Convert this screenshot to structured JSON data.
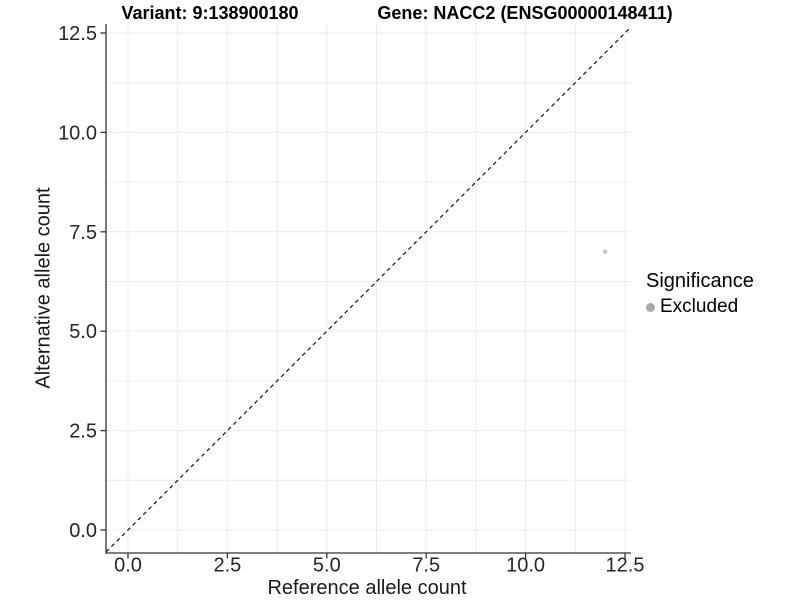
{
  "figure": {
    "title_left": "Variant: 9:138900180",
    "title_right": "Gene: NACC2 (ENSG00000148411)",
    "legend": {
      "title": "Significance",
      "items": [
        {
          "label": "Excluded",
          "color": "#a8a8a8"
        }
      ]
    }
  },
  "chart_data": {
    "type": "scatter",
    "title": "Variant: 9:138900180 | Gene: NACC2 (ENSG00000148411)",
    "xlabel": "Reference allele count",
    "ylabel": "Alternative allele count",
    "xlim": [
      -0.55,
      12.65
    ],
    "ylim": [
      -0.58,
      12.7
    ],
    "x_ticks": {
      "values": [
        0,
        2.5,
        5,
        7.5,
        10,
        12.5
      ],
      "labels": [
        "0.0",
        "2.5",
        "5.0",
        "7.5",
        "10.0",
        "12.5"
      ]
    },
    "y_ticks": {
      "values": [
        0,
        2.5,
        5,
        7.5,
        10,
        12.5
      ],
      "labels": [
        "0.0",
        "2.5",
        "5.0",
        "7.5",
        "10.0",
        "12.5"
      ]
    },
    "minor_tick_step": 1.25,
    "grid": true,
    "legend_position": "right",
    "series": [
      {
        "name": "Excluded",
        "color": "#c2c2c2",
        "points": [
          [
            12,
            7
          ]
        ]
      }
    ],
    "identity_line": {
      "slope": 1,
      "intercept": 0,
      "style": "dashed",
      "color": "#000000"
    },
    "colors": {
      "grid": "#ebebeb",
      "axis_line": "#333333",
      "tick_text": "#262626"
    }
  }
}
